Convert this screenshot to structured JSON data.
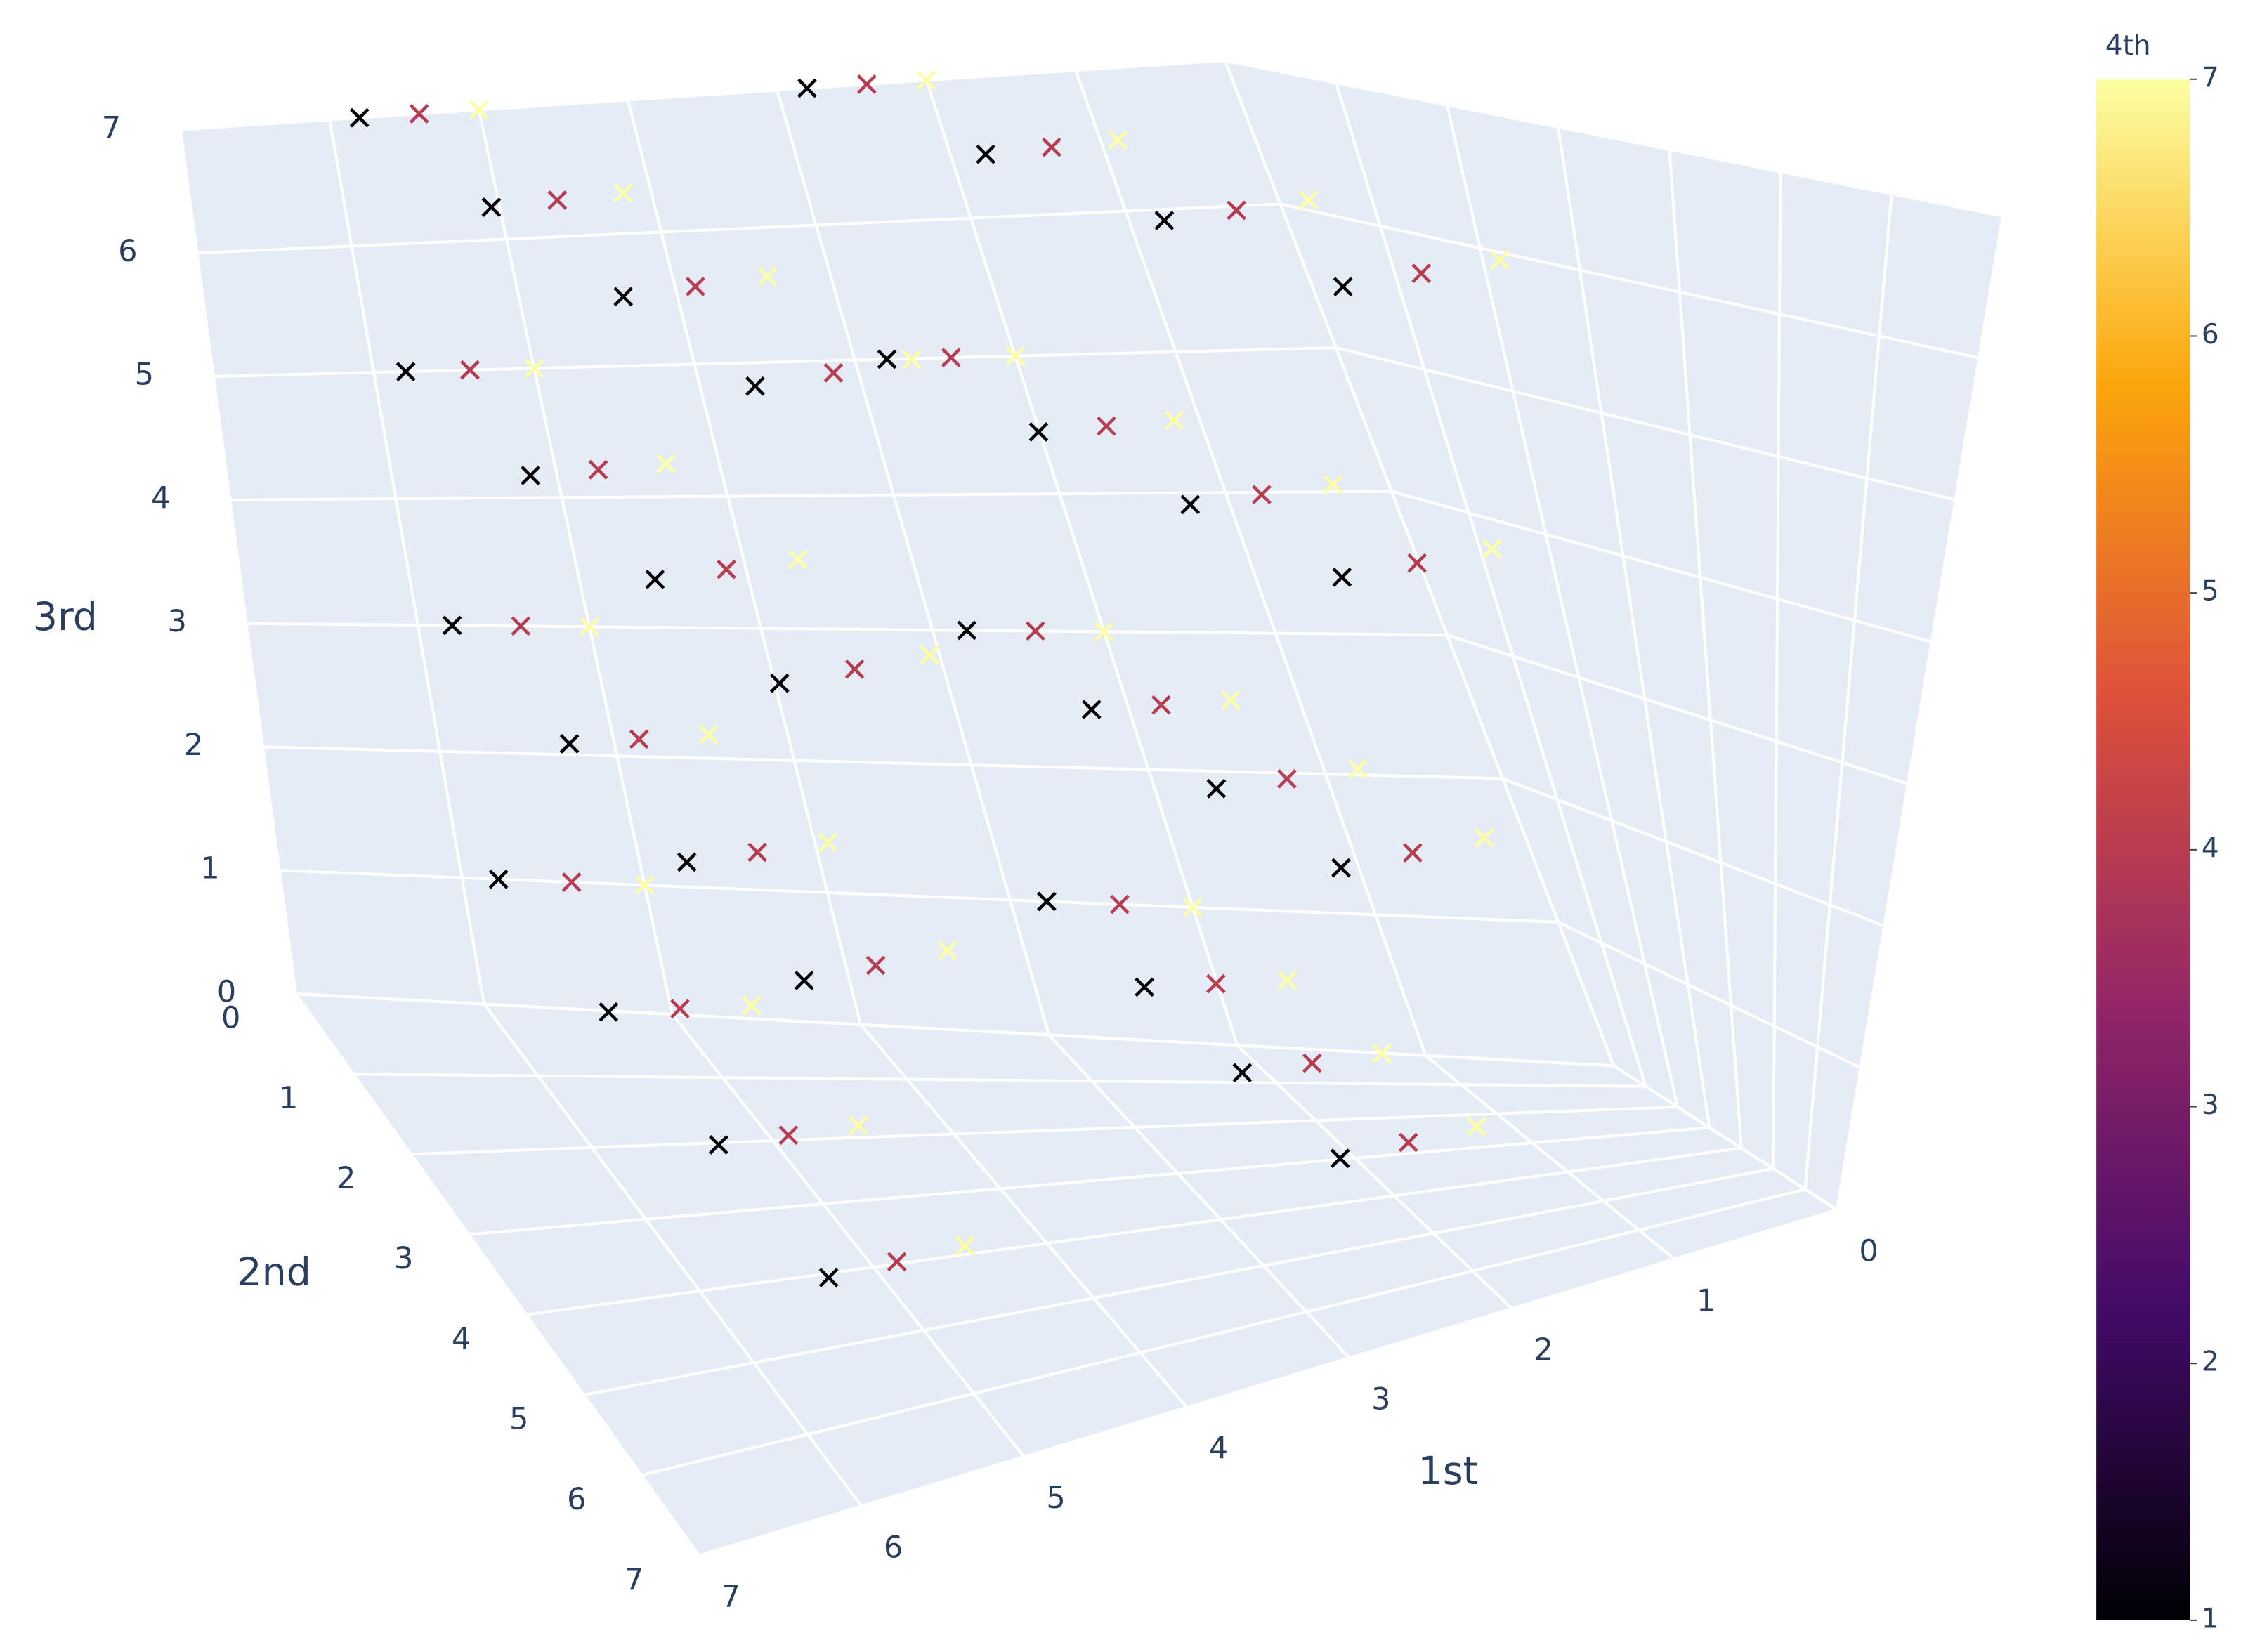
{
  "chart_data": {
    "type": "scatter3d",
    "marker_symbol": "x",
    "x_title": "1st",
    "y_title": "2nd",
    "z_title": "3rd",
    "colorbar_title": "4th",
    "colorscale": [
      "#000004",
      "#420a68",
      "#932667",
      "#dd513a",
      "#fca50a",
      "#fcffa4"
    ],
    "xlim": [
      0,
      7
    ],
    "ylim": [
      0,
      7
    ],
    "zlim": [
      0,
      7
    ],
    "clim": [
      1,
      7
    ],
    "xticks": [
      0,
      1,
      2,
      3,
      4,
      5,
      6,
      7
    ],
    "yticks": [
      0,
      1,
      2,
      3,
      4,
      5,
      6,
      7
    ],
    "zticks": [
      0,
      1,
      2,
      3,
      4,
      5,
      6,
      7
    ],
    "cticks": [
      1,
      2,
      3,
      4,
      5,
      6,
      7
    ],
    "grid": true,
    "x": [
      2.8,
      2.4,
      2,
      2.8,
      2.4,
      2,
      2.8,
      2.4,
      2,
      2.8,
      2.4,
      2,
      2.8,
      2.4,
      2,
      2.8,
      2.4,
      2,
      2.8,
      2.4,
      2,
      2.8,
      2.4,
      2,
      2.8,
      2.4,
      2,
      2.8,
      2.4,
      2,
      2.8,
      2.4,
      2,
      2.8,
      2.4,
      2,
      2.8,
      2.4,
      2,
      2.8,
      2.4,
      2,
      2.8,
      2.4,
      2,
      2.8,
      2.4,
      2,
      5.8,
      5.4,
      5,
      5.8,
      5.4,
      5,
      5.8,
      5.4,
      5,
      5.8,
      5.4,
      5,
      5.8,
      5.4,
      5,
      5.8,
      5.4,
      5,
      5.8,
      5.4,
      5,
      5.8,
      5.4,
      5,
      5.8,
      5.4,
      5,
      5.8,
      5.4,
      5,
      5.8,
      5.4,
      5,
      5.8,
      5.4,
      5,
      5.8,
      5.4,
      5,
      5.8,
      5.4,
      5,
      5.8,
      5.4,
      5,
      5.8,
      5.4,
      5
    ],
    "y": [
      0,
      0,
      0,
      0,
      0,
      0,
      0,
      0,
      0,
      0,
      0,
      0,
      2,
      2,
      2,
      2,
      2,
      2,
      2,
      2,
      2,
      2,
      2,
      2,
      4,
      4,
      4,
      4,
      4,
      4,
      4,
      4,
      4,
      4,
      4,
      4,
      6,
      6,
      6,
      6,
      6,
      6,
      6,
      6,
      6,
      6,
      6,
      6,
      0,
      0,
      0,
      0,
      0,
      0,
      0,
      0,
      0,
      0,
      0,
      0,
      2,
      2,
      2,
      2,
      2,
      2,
      2,
      2,
      2,
      2,
      2,
      2,
      4,
      4,
      4,
      4,
      4,
      4,
      4,
      4,
      4,
      4,
      4,
      4,
      6,
      6,
      6,
      6,
      6,
      6,
      6,
      6,
      6,
      6,
      6,
      6
    ],
    "z": [
      1,
      1,
      1,
      3,
      3,
      3,
      5,
      5,
      5,
      7,
      7,
      7,
      1,
      1,
      1,
      3,
      3,
      3,
      5,
      5,
      5,
      7,
      7,
      7,
      1,
      1,
      1,
      3,
      3,
      3,
      5,
      5,
      5,
      7,
      7,
      7,
      1,
      1,
      1,
      3,
      3,
      3,
      5,
      5,
      5,
      7,
      7,
      7,
      1,
      1,
      1,
      3,
      3,
      3,
      5,
      5,
      5,
      7,
      7,
      7,
      1,
      1,
      1,
      3,
      3,
      3,
      5,
      5,
      5,
      7,
      7,
      7,
      1,
      1,
      1,
      3,
      3,
      3,
      5,
      5,
      5,
      7,
      7,
      7,
      1,
      1,
      1,
      3,
      3,
      3,
      5,
      5,
      5,
      7,
      7,
      7
    ],
    "values": [
      1,
      4,
      7,
      1,
      4,
      7,
      1,
      4,
      7,
      1,
      4,
      7,
      1,
      4,
      7,
      1,
      4,
      7,
      1,
      4,
      7,
      1,
      4,
      7,
      1,
      4,
      7,
      1,
      4,
      7,
      1,
      4,
      7,
      1,
      4,
      7,
      1,
      4,
      7,
      1,
      4,
      7,
      1,
      4,
      7,
      1,
      4,
      7,
      1,
      4,
      7,
      1,
      4,
      7,
      1,
      4,
      7,
      1,
      4,
      7,
      1,
      4,
      7,
      1,
      4,
      7,
      1,
      4,
      7,
      1,
      4,
      7,
      1,
      4,
      7,
      1,
      4,
      7,
      1,
      4,
      7,
      1,
      4,
      7,
      1,
      4,
      7,
      1,
      4,
      7,
      1,
      4,
      7,
      1,
      4,
      7
    ]
  }
}
